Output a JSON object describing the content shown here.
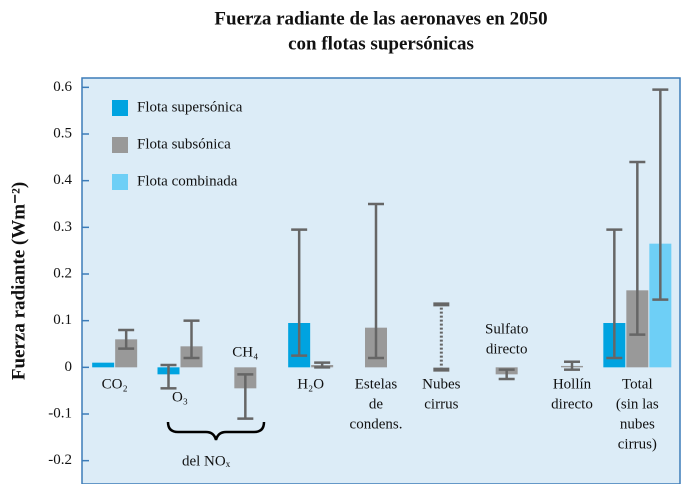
{
  "chart_data": {
    "type": "bar",
    "title": [
      "Fuerza radiante de las aeronaves en 2050",
      "con flotas supersónicas"
    ],
    "y_label": "Fuerza radiante (Wm⁻²)",
    "categories": [
      [
        "CO₂"
      ],
      [
        "O₃"
      ],
      [
        "CH₄"
      ],
      [
        "H₂O"
      ],
      [
        "Estelas",
        "de",
        "condens."
      ],
      [
        "Nubes",
        "cirrus"
      ],
      [
        "Sulfato",
        "directo"
      ],
      [
        "Hollín",
        "directo"
      ],
      [
        "Total",
        "(sin las",
        "nubes",
        "cirrus)"
      ]
    ],
    "annotation": "del NOₓ",
    "series": [
      {
        "name": "Flota supersónica",
        "color": "#00a3e0",
        "values": [
          0.01,
          -0.015,
          null,
          0.095,
          null,
          null,
          null,
          null,
          0.095
        ],
        "error_low": [
          null,
          -0.045,
          null,
          0.025,
          null,
          null,
          null,
          null,
          0.02
        ],
        "error_high": [
          null,
          0.005,
          null,
          0.295,
          null,
          null,
          null,
          null,
          0.295
        ]
      },
      {
        "name": "Flota subsónica",
        "color": "#999999",
        "values": [
          0.06,
          0.045,
          -0.045,
          0.005,
          0.085,
          null,
          -0.015,
          0.003,
          0.165
        ],
        "error_low": [
          0.04,
          0.02,
          -0.11,
          0,
          0.02,
          -0.005,
          -0.025,
          -0.005,
          0.07
        ],
        "error_high": [
          0.08,
          0.1,
          -0.015,
          0.01,
          0.35,
          0.135,
          -0.005,
          0.012,
          0.44
        ],
        "error_dotted": [
          false,
          false,
          false,
          false,
          false,
          true,
          false,
          false,
          false
        ]
      },
      {
        "name": "Flota combinada",
        "color": "#6ecff6",
        "values": [
          null,
          null,
          null,
          null,
          null,
          null,
          null,
          null,
          0.265
        ],
        "error_low": [
          null,
          null,
          null,
          null,
          null,
          null,
          null,
          null,
          0.145
        ],
        "error_high": [
          null,
          null,
          null,
          null,
          null,
          null,
          null,
          null,
          0.595
        ]
      }
    ],
    "ylim": [
      -0.25,
      0.62
    ],
    "yticks": [
      -0.2,
      -0.1,
      0,
      0.1,
      0.2,
      0.3,
      0.4,
      0.5,
      0.6
    ],
    "legend": "upper left"
  }
}
